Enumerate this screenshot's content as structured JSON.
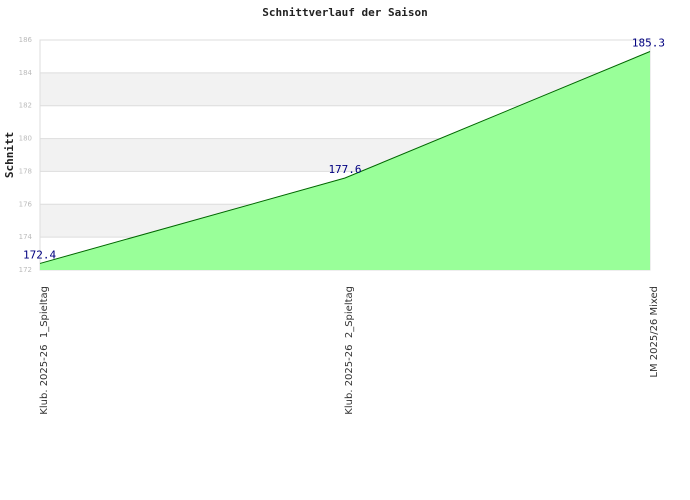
{
  "chart_data": {
    "type": "area",
    "title": "Schnittverlauf der Saison",
    "y_label": "Schnitt",
    "categories": [
      "Klub. 2025-26  1_Spieltag",
      "Klub. 2025-26  2_Spieltag",
      "LM 2025/26 Mixed"
    ],
    "values": [
      172.4,
      177.6,
      185.3
    ],
    "color": "#99ff99",
    "line_color": "#006600",
    "ylim": [
      172,
      186
    ],
    "yticks": [
      172,
      174,
      176,
      178,
      180,
      182,
      184,
      186
    ],
    "grid": true
  }
}
